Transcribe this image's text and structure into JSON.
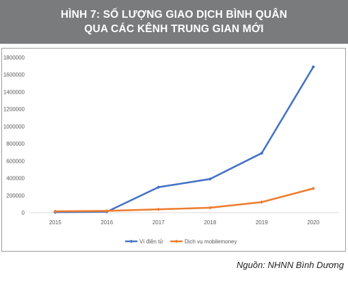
{
  "header": {
    "title_line1": "HÌNH 7: SỐ LƯỢNG GIAO DỊCH BÌNH QUÂN",
    "title_line2": "QUA CÁC KÊNH TRUNG GIAN MỚI"
  },
  "source": "Nguồn: NHNN Bình Dương",
  "chart_data": {
    "type": "line",
    "categories": [
      "2015",
      "2016",
      "2017",
      "2018",
      "2019",
      "2020"
    ],
    "series": [
      {
        "name": "Ví điện tử",
        "color": "#4472c4",
        "values": [
          5000,
          10000,
          295000,
          390000,
          690000,
          1690000
        ]
      },
      {
        "name": "Dịch vụ mobilemoney",
        "color": "#ed7d31",
        "values": [
          15000,
          20000,
          38000,
          57000,
          122000,
          280000
        ]
      }
    ],
    "ylim": [
      0,
      1800000
    ],
    "yticks": [
      "0",
      "200000",
      "400000",
      "600000",
      "800000",
      "1000000",
      "1200000",
      "1400000",
      "1600000",
      "1800000"
    ],
    "ytick_values": [
      0,
      200000,
      400000,
      600000,
      800000,
      1000000,
      1200000,
      1400000,
      1600000,
      1800000
    ],
    "grid": false,
    "legend_position": "bottom"
  }
}
